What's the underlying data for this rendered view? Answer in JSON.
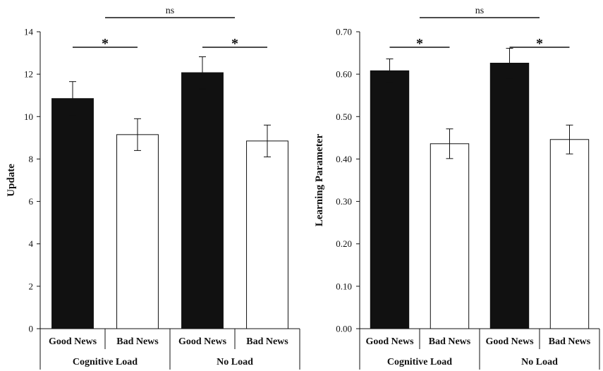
{
  "chart_data": [
    {
      "type": "bar",
      "title": "",
      "ylabel": "Update",
      "xlabel": "",
      "ylim": [
        0,
        14
      ],
      "yticks": [
        "0",
        "2",
        "4",
        "6",
        "8",
        "10",
        "12",
        "14"
      ],
      "grid": false,
      "legend": "none",
      "groups": [
        "Cognitive Load",
        "No Load"
      ],
      "categories": [
        "Good News",
        "Bad News",
        "Good News",
        "Bad News"
      ],
      "values": [
        10.85,
        9.15,
        12.07,
        8.85
      ],
      "errors": [
        0.8,
        0.75,
        0.75,
        0.75
      ],
      "bar_colors": [
        "#111111",
        "#ffffff",
        "#111111",
        "#ffffff"
      ],
      "annotations": [
        {
          "text": "*",
          "from": 0,
          "to": 1
        },
        {
          "text": "*",
          "from": 2,
          "to": 3
        },
        {
          "text": "ns",
          "from": 0.5,
          "to": 2.5
        }
      ]
    },
    {
      "type": "bar",
      "title": "",
      "ylabel": "Learning Parameter",
      "xlabel": "",
      "ylim": [
        0,
        0.7
      ],
      "yticks": [
        "0.00",
        "0.10",
        "0.20",
        "0.30",
        "0.40",
        "0.50",
        "0.60",
        "0.70"
      ],
      "grid": false,
      "legend": "none",
      "groups": [
        "Cognitive Load",
        "No Load"
      ],
      "categories": [
        "Good News",
        "Bad News",
        "Good News",
        "Bad News"
      ],
      "values": [
        0.608,
        0.436,
        0.626,
        0.446
      ],
      "errors": [
        0.028,
        0.035,
        0.035,
        0.034
      ],
      "bar_colors": [
        "#111111",
        "#ffffff",
        "#111111",
        "#ffffff"
      ],
      "annotations": [
        {
          "text": "*",
          "from": 0,
          "to": 1
        },
        {
          "text": "*",
          "from": 2,
          "to": 3
        },
        {
          "text": "ns",
          "from": 0.5,
          "to": 2.5
        }
      ]
    }
  ]
}
